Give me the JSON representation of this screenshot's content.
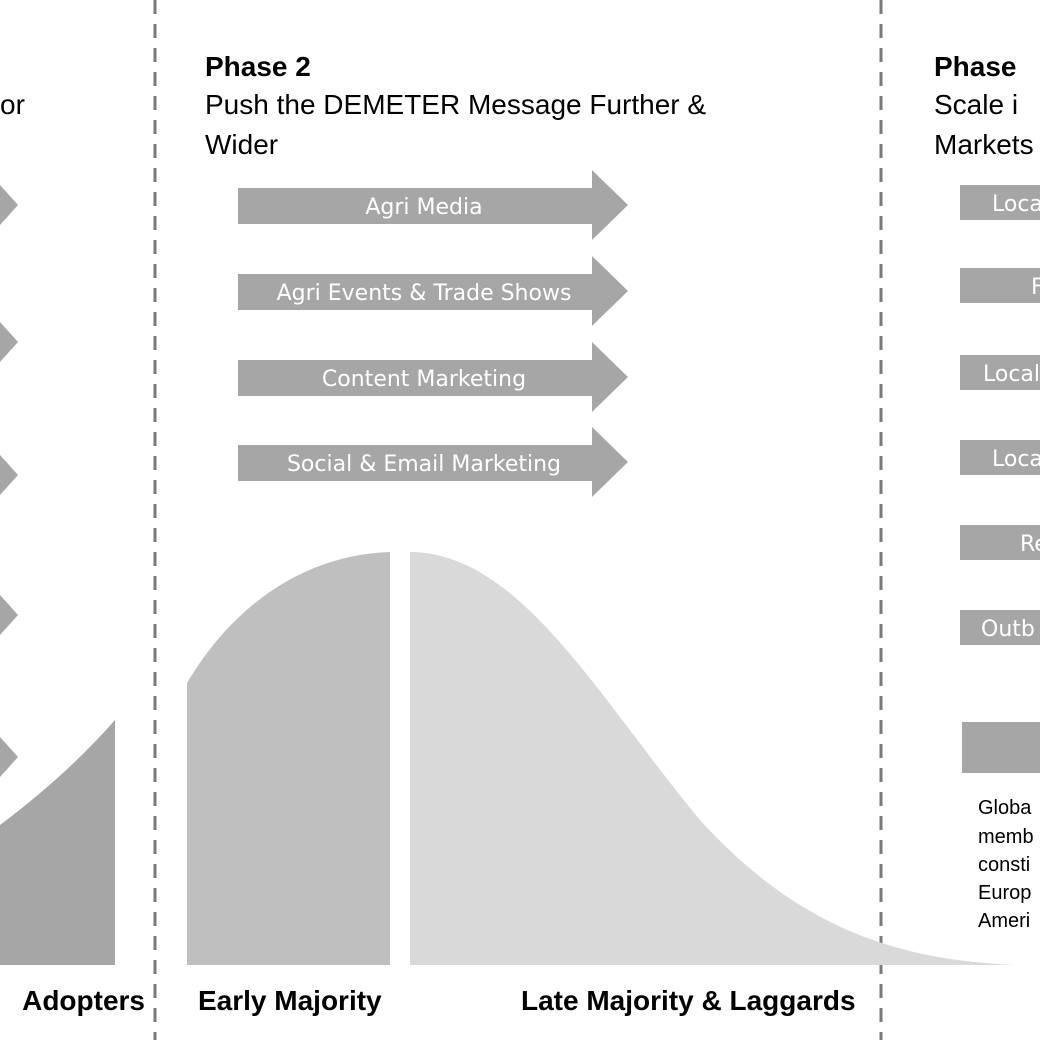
{
  "phase1": {
    "title_fragment": "or",
    "stage_label": "Adopters"
  },
  "phase2": {
    "heading": "Phase 2",
    "subtitle_lines": [
      "Push the DEMETER Message Further &",
      "Wider"
    ],
    "channels": [
      "Agri Media",
      "Agri Events & Trade Shows",
      "Content Marketing",
      "Social & Email Marketing"
    ],
    "stage_labels": [
      "Early Majority",
      "Late Majority & Laggards"
    ]
  },
  "phase3": {
    "heading": "Phase",
    "subtitle_lines": [
      "Scale i",
      "Markets"
    ],
    "channels": [
      "Loca",
      "F",
      "Local",
      "Loca",
      "Re",
      "Outb"
    ],
    "note_lines": [
      "Globa",
      "memb",
      "consti",
      "Europ",
      "Ameri"
    ]
  }
}
